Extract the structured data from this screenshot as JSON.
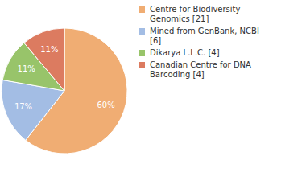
{
  "chart_data": {
    "type": "pie",
    "categories": [
      "Centre for Biodiversity Genomics [21]",
      "Mined from GenBank, NCBI [6]",
      "Dikarya L.L.C. [4]",
      "Canadian Centre for DNA Barcoding [4]"
    ],
    "values": [
      60,
      17,
      11,
      11
    ],
    "value_labels": [
      "60%",
      "17%",
      "11%",
      "11%"
    ],
    "colors": [
      "#f0ad73",
      "#a3bde4",
      "#98c46a",
      "#dc7b60"
    ],
    "data_labels": true,
    "legend": "top right"
  }
}
